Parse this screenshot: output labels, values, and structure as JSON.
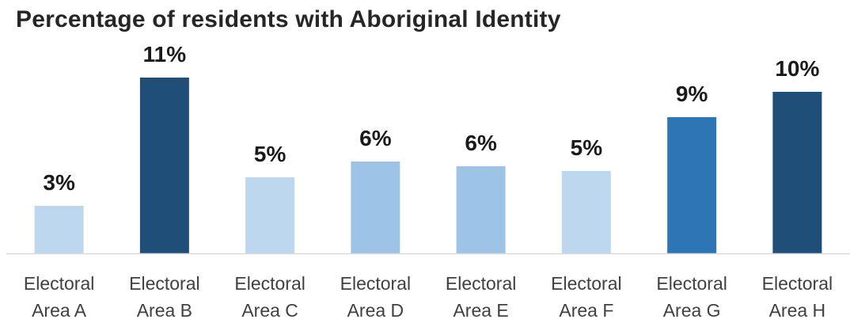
{
  "chart_data": {
    "type": "bar",
    "title": "Percentage of residents with  Aboriginal Identity",
    "xlabel": "",
    "ylabel": "",
    "categories": [
      [
        "Electoral",
        "Area A"
      ],
      [
        "Electoral",
        "Area B"
      ],
      [
        "Electoral",
        "Area C"
      ],
      [
        "Electoral",
        "Area D"
      ],
      [
        "Electoral",
        "Area E"
      ],
      [
        "Electoral",
        "Area F"
      ],
      [
        "Electoral",
        "Area G"
      ],
      [
        "Electoral",
        "Area H"
      ]
    ],
    "values": [
      3.0,
      11.1,
      4.8,
      5.8,
      5.5,
      5.2,
      8.6,
      10.2
    ],
    "data_labels": [
      "3%",
      "11%",
      "5%",
      "6%",
      "6%",
      "5%",
      "9%",
      "10%"
    ],
    "colors": [
      "#bdd7ee",
      "#1f4e79",
      "#bdd7ee",
      "#9dc3e6",
      "#9dc3e6",
      "#bdd7ee",
      "#2e75b6",
      "#1f4e79"
    ],
    "ylim": [
      0,
      12
    ],
    "grid": false,
    "legend": "none",
    "axis_color": "#d9d9d9"
  }
}
